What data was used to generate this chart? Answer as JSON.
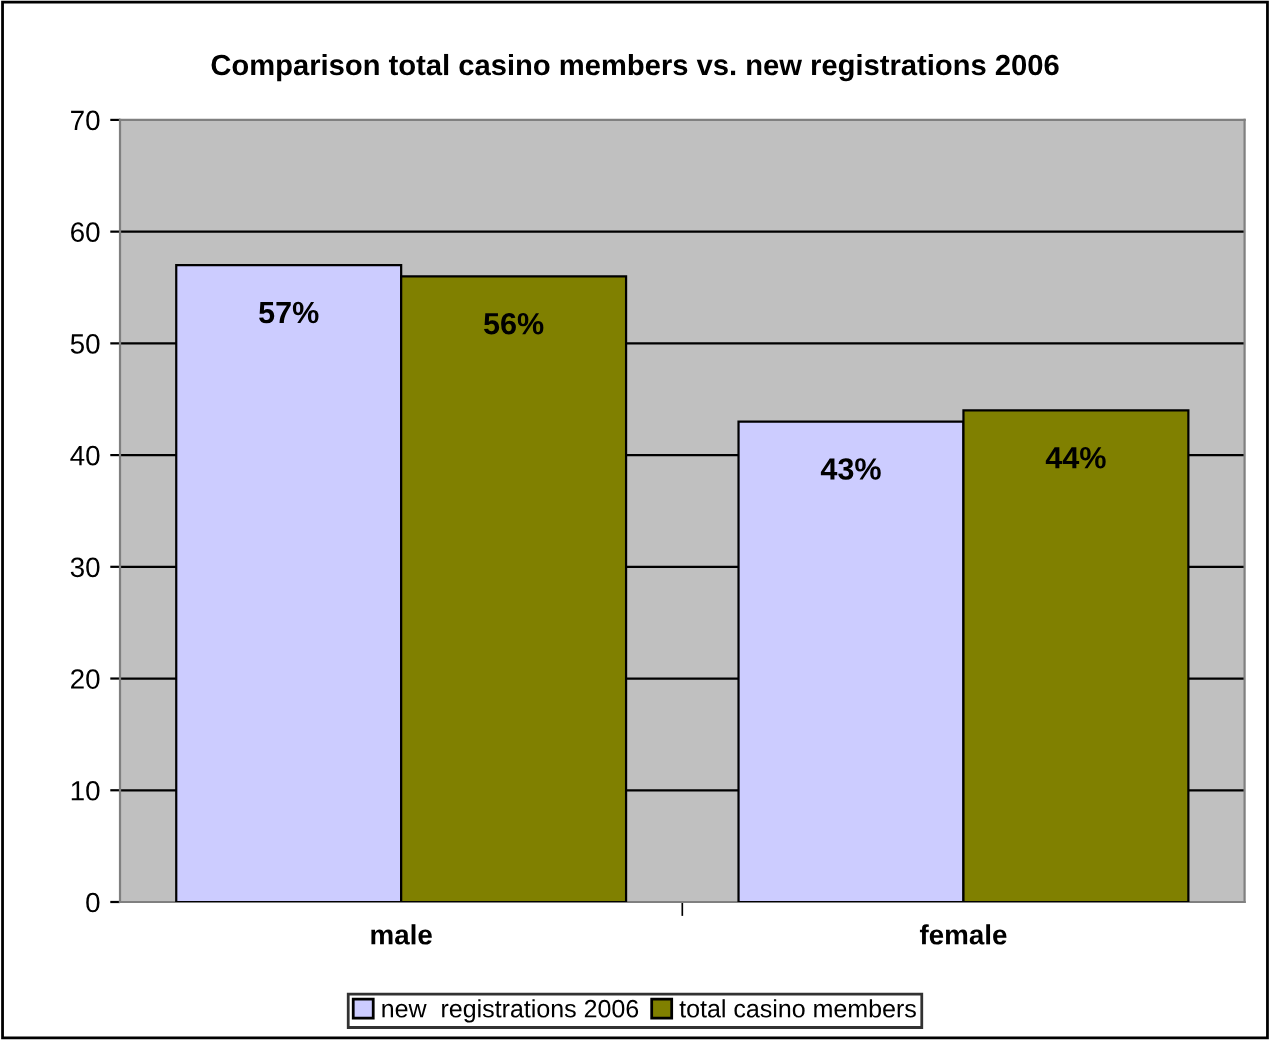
{
  "chart_data": {
    "type": "bar",
    "title": "Comparison total casino members vs. new registrations 2006",
    "categories": [
      "male",
      "female"
    ],
    "series": [
      {
        "name": "new  registrations 2006",
        "color": "#ccccff",
        "values": [
          57,
          43
        ],
        "value_labels": [
          "57%",
          "43%"
        ]
      },
      {
        "name": "total casino members",
        "color": "#808000",
        "values": [
          56,
          44
        ],
        "value_labels": [
          "56%",
          "44%"
        ]
      }
    ],
    "ylim": [
      0,
      70
    ],
    "yticks": [
      0,
      10,
      20,
      30,
      40,
      50,
      60,
      70
    ],
    "grid": "y",
    "legend": "bottom"
  }
}
